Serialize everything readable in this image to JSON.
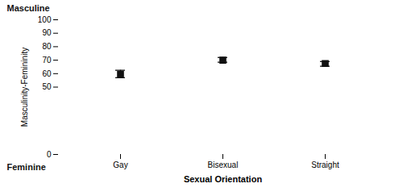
{
  "chart_data": {
    "type": "errorbar",
    "categories": [
      "Gay",
      "Bisexual",
      "Straight"
    ],
    "values": [
      59.5,
      70.0,
      67.5
    ],
    "ci_lower": [
      57.0,
      68.5,
      65.5
    ],
    "ci_upper": [
      62.5,
      72.0,
      69.0
    ],
    "xlabel": "Sexual Orientation",
    "ylabel": "Masculinity-Femininity",
    "ylim": [
      0,
      100
    ],
    "yticks": [
      0,
      50,
      60,
      70,
      80,
      90,
      100
    ],
    "color": "#111111",
    "marker": "square",
    "grid": false,
    "annotations": [
      {
        "text": "Masculine",
        "y": 100
      },
      {
        "text": "Feminine",
        "y": 0
      }
    ]
  }
}
